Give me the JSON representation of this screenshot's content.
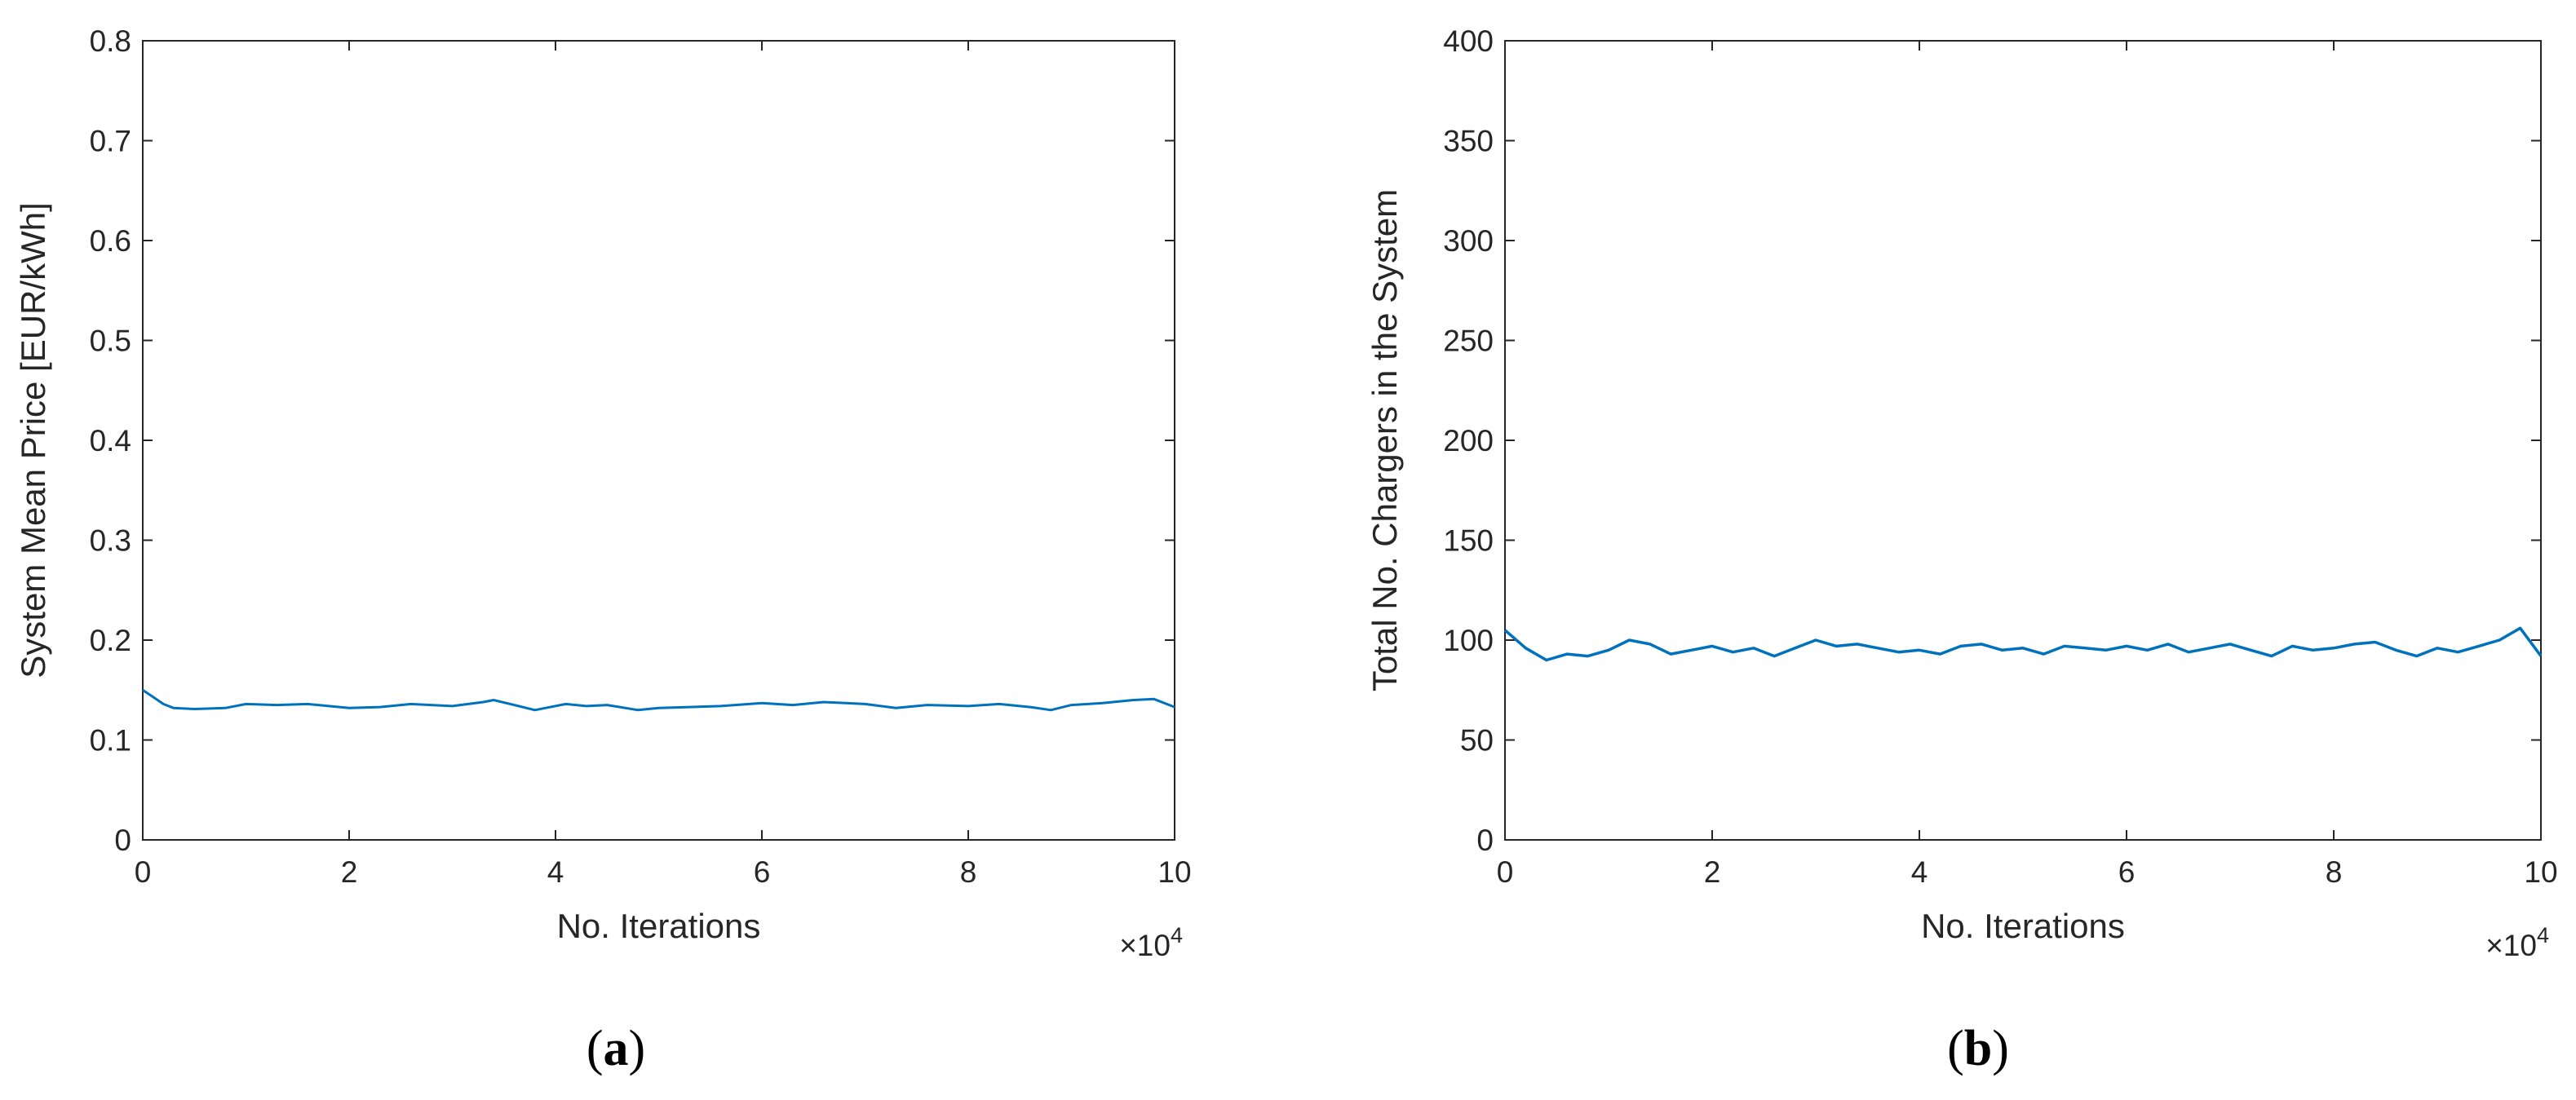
{
  "chart_data": [
    {
      "type": "line",
      "panel_label": "a",
      "xlabel": "No. Iterations",
      "ylabel": "System Mean Price [EUR/kWh]",
      "x_multiplier": "×10",
      "x_multiplier_exp": "4",
      "xlim": [
        0,
        10
      ],
      "ylim": [
        0,
        0.8
      ],
      "xticks": [
        "0",
        "2",
        "4",
        "6",
        "8",
        "10"
      ],
      "yticks": [
        "0",
        "0.1",
        "0.2",
        "0.3",
        "0.4",
        "0.5",
        "0.6",
        "0.7",
        "0.8"
      ],
      "grid": false,
      "color": "#0072BD",
      "series": [
        {
          "x": [
            0,
            0.1,
            0.2,
            0.3,
            0.5,
            0.8,
            1.0,
            1.3,
            1.6,
            2.0,
            2.3,
            2.6,
            3.0,
            3.3,
            3.4,
            3.6,
            3.8,
            4.1,
            4.3,
            4.5,
            4.8,
            5.0,
            5.3,
            5.6,
            6.0,
            6.3,
            6.6,
            7.0,
            7.3,
            7.6,
            8.0,
            8.3,
            8.6,
            8.8,
            9.0,
            9.3,
            9.6,
            9.8,
            10.0
          ],
          "y": [
            0.15,
            0.143,
            0.136,
            0.132,
            0.131,
            0.132,
            0.136,
            0.135,
            0.136,
            0.132,
            0.133,
            0.136,
            0.134,
            0.138,
            0.14,
            0.135,
            0.13,
            0.136,
            0.134,
            0.135,
            0.13,
            0.132,
            0.133,
            0.134,
            0.137,
            0.135,
            0.138,
            0.136,
            0.132,
            0.135,
            0.134,
            0.136,
            0.133,
            0.13,
            0.135,
            0.137,
            0.14,
            0.141,
            0.133
          ]
        }
      ]
    },
    {
      "type": "line",
      "panel_label": "b",
      "xlabel": "No. Iterations",
      "ylabel": "Total No. Chargers in the System",
      "x_multiplier": "×10",
      "x_multiplier_exp": "4",
      "xlim": [
        0,
        10
      ],
      "ylim": [
        0,
        400
      ],
      "xticks": [
        "0",
        "2",
        "4",
        "6",
        "8",
        "10"
      ],
      "yticks": [
        "0",
        "50",
        "100",
        "150",
        "200",
        "250",
        "300",
        "350",
        "400"
      ],
      "grid": false,
      "color": "#0072BD",
      "series": [
        {
          "x": [
            0,
            0.2,
            0.4,
            0.6,
            0.8,
            1.0,
            1.2,
            1.4,
            1.6,
            1.8,
            2.0,
            2.2,
            2.4,
            2.6,
            2.8,
            3.0,
            3.2,
            3.4,
            3.6,
            3.8,
            4.0,
            4.2,
            4.4,
            4.6,
            4.8,
            5.0,
            5.2,
            5.4,
            5.6,
            5.8,
            6.0,
            6.2,
            6.4,
            6.6,
            6.8,
            7.0,
            7.2,
            7.4,
            7.6,
            7.8,
            8.0,
            8.2,
            8.4,
            8.6,
            8.8,
            9.0,
            9.2,
            9.4,
            9.6,
            9.8,
            10.0
          ],
          "y": [
            105,
            96,
            90,
            93,
            92,
            95,
            100,
            98,
            93,
            95,
            97,
            94,
            96,
            92,
            96,
            100,
            97,
            98,
            96,
            94,
            95,
            93,
            97,
            98,
            95,
            96,
            93,
            97,
            96,
            95,
            97,
            95,
            98,
            94,
            96,
            98,
            95,
            92,
            97,
            95,
            96,
            98,
            99,
            95,
            92,
            96,
            94,
            97,
            100,
            106,
            92
          ]
        }
      ]
    }
  ]
}
